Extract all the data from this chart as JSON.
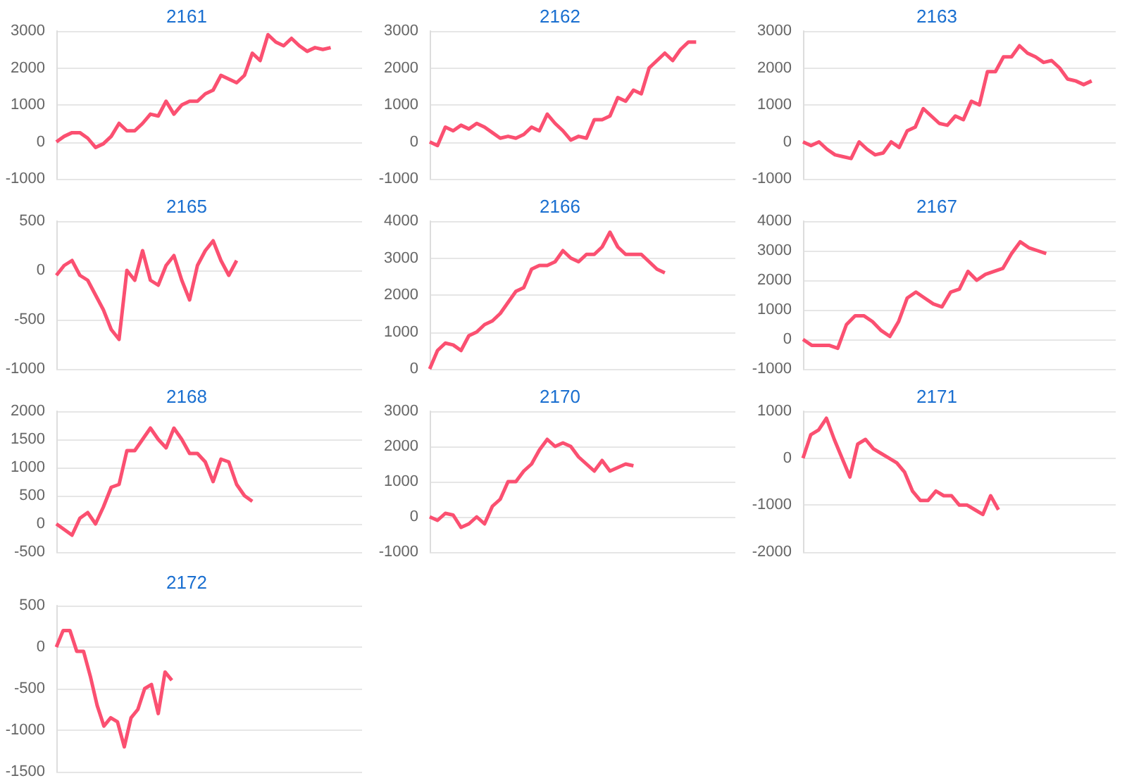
{
  "chart_data": [
    {
      "type": "line",
      "title": "2161",
      "color": "#fb5071",
      "grid": "y",
      "ylim": [
        -1000,
        3000
      ],
      "yticks": [
        -1000,
        0,
        1000,
        2000,
        3000
      ],
      "categories": [
        null,
        null,
        null,
        null,
        null,
        null,
        null,
        null,
        null,
        null,
        null,
        null,
        null,
        null,
        null,
        null,
        null,
        null,
        null,
        null,
        null,
        null,
        null,
        null,
        null,
        null,
        null,
        null,
        null,
        null,
        null,
        null,
        null,
        null,
        null,
        null,
        null,
        null,
        null,
        null
      ],
      "values": [
        0,
        150,
        250,
        250,
        100,
        -150,
        -50,
        150,
        500,
        300,
        300,
        500,
        750,
        700,
        1100,
        750,
        1000,
        1100,
        1100,
        1300,
        1400,
        1800,
        1700,
        1600,
        1800,
        2400,
        2200,
        2900,
        2700,
        2600,
        2800,
        2600,
        2450,
        2550,
        2500,
        2550,
        null,
        null,
        null,
        null
      ]
    },
    {
      "type": "line",
      "title": "2162",
      "color": "#fb5071",
      "grid": "y",
      "ylim": [
        -1000,
        3000
      ],
      "yticks": [
        -1000,
        0,
        1000,
        2000,
        3000
      ],
      "categories": [
        null,
        null,
        null,
        null,
        null,
        null,
        null,
        null,
        null,
        null,
        null,
        null,
        null,
        null,
        null,
        null,
        null,
        null,
        null,
        null,
        null,
        null,
        null,
        null,
        null,
        null,
        null,
        null,
        null,
        null,
        null,
        null,
        null,
        null,
        null,
        null,
        null,
        null,
        null,
        null
      ],
      "values": [
        0,
        -100,
        400,
        300,
        450,
        350,
        500,
        400,
        250,
        100,
        150,
        100,
        200,
        400,
        300,
        750,
        500,
        300,
        50,
        150,
        100,
        600,
        600,
        700,
        1200,
        1100,
        1400,
        1300,
        2000,
        2200,
        2400,
        2200,
        2500,
        2700,
        2700,
        null,
        null,
        null,
        null,
        null
      ]
    },
    {
      "type": "line",
      "title": "2163",
      "color": "#fb5071",
      "grid": "y",
      "ylim": [
        -1000,
        3000
      ],
      "yticks": [
        -1000,
        0,
        1000,
        2000,
        3000
      ],
      "categories": [
        null,
        null,
        null,
        null,
        null,
        null,
        null,
        null,
        null,
        null,
        null,
        null,
        null,
        null,
        null,
        null,
        null,
        null,
        null,
        null,
        null,
        null,
        null,
        null,
        null,
        null,
        null,
        null,
        null,
        null,
        null,
        null,
        null,
        null,
        null,
        null,
        null,
        null,
        null,
        null
      ],
      "values": [
        0,
        -100,
        0,
        -200,
        -350,
        -400,
        -450,
        0,
        -200,
        -350,
        -300,
        0,
        -150,
        300,
        400,
        900,
        700,
        500,
        450,
        700,
        600,
        1100,
        1000,
        1900,
        1900,
        2300,
        2300,
        2600,
        2400,
        2300,
        2150,
        2200,
        2000,
        1700,
        1650,
        1550,
        1650,
        null,
        null,
        null
      ]
    },
    {
      "type": "line",
      "title": "2165",
      "color": "#fb5071",
      "grid": "y",
      "ylim": [
        -1000,
        500
      ],
      "yticks": [
        -1000,
        -500,
        0,
        500
      ],
      "categories": [
        null,
        null,
        null,
        null,
        null,
        null,
        null,
        null,
        null,
        null,
        null,
        null,
        null,
        null,
        null,
        null,
        null,
        null,
        null,
        null,
        null,
        null,
        null,
        null,
        null,
        null,
        null,
        null,
        null,
        null,
        null,
        null,
        null,
        null,
        null,
        null,
        null,
        null,
        null,
        null
      ],
      "values": [
        -50,
        50,
        100,
        -50,
        -100,
        -250,
        -400,
        -600,
        -700,
        0,
        -100,
        200,
        -100,
        -150,
        50,
        150,
        -100,
        -300,
        50,
        200,
        300,
        100,
        -50,
        100,
        null,
        null,
        null,
        null,
        null,
        null,
        null,
        null,
        null,
        null,
        null,
        null,
        null,
        null,
        null,
        null
      ]
    },
    {
      "type": "line",
      "title": "2166",
      "color": "#fb5071",
      "grid": "y",
      "ylim": [
        0,
        4000
      ],
      "yticks": [
        0,
        1000,
        2000,
        3000,
        4000
      ],
      "categories": [
        null,
        null,
        null,
        null,
        null,
        null,
        null,
        null,
        null,
        null,
        null,
        null,
        null,
        null,
        null,
        null,
        null,
        null,
        null,
        null,
        null,
        null,
        null,
        null,
        null,
        null,
        null,
        null,
        null,
        null,
        null,
        null,
        null,
        null,
        null,
        null,
        null,
        null,
        null,
        null
      ],
      "values": [
        0,
        500,
        700,
        650,
        500,
        900,
        1000,
        1200,
        1300,
        1500,
        1800,
        2100,
        2200,
        2700,
        2800,
        2800,
        2900,
        3200,
        3000,
        2900,
        3100,
        3100,
        3300,
        3700,
        3300,
        3100,
        3100,
        3100,
        2900,
        2700,
        2600,
        null,
        null,
        null,
        null,
        null,
        null,
        null,
        null,
        null
      ]
    },
    {
      "type": "line",
      "title": "2167",
      "color": "#fb5071",
      "grid": "y",
      "ylim": [
        -1000,
        4000
      ],
      "yticks": [
        -1000,
        0,
        1000,
        2000,
        3000,
        4000
      ],
      "categories": [
        null,
        null,
        null,
        null,
        null,
        null,
        null,
        null,
        null,
        null,
        null,
        null,
        null,
        null,
        null,
        null,
        null,
        null,
        null,
        null,
        null,
        null,
        null,
        null,
        null,
        null,
        null,
        null,
        null,
        null,
        null,
        null,
        null,
        null,
        null,
        null,
        null
      ],
      "values": [
        0,
        -200,
        -200,
        -200,
        -300,
        500,
        800,
        800,
        600,
        300,
        100,
        600,
        1400,
        1600,
        1400,
        1200,
        1100,
        1600,
        1700,
        2300,
        2000,
        2200,
        2300,
        2400,
        2900,
        3300,
        3100,
        3000,
        2900,
        null,
        null,
        null,
        null,
        null,
        null,
        null,
        null
      ]
    },
    {
      "type": "line",
      "title": "2168",
      "color": "#fb5071",
      "grid": "y",
      "ylim": [
        -500,
        2000
      ],
      "yticks": [
        -500,
        0,
        500,
        1000,
        1500,
        2000
      ],
      "categories": [
        null,
        null,
        null,
        null,
        null,
        null,
        null,
        null,
        null,
        null,
        null,
        null,
        null,
        null,
        null,
        null,
        null,
        null,
        null,
        null,
        null,
        null,
        null,
        null,
        null,
        null,
        null,
        null,
        null,
        null,
        null,
        null,
        null,
        null,
        null,
        null,
        null,
        null,
        null,
        null
      ],
      "values": [
        0,
        -100,
        -200,
        100,
        200,
        0,
        300,
        650,
        700,
        1300,
        1300,
        1500,
        1700,
        1500,
        1350,
        1700,
        1500,
        1250,
        1250,
        1100,
        750,
        1150,
        1100,
        700,
        500,
        400,
        null,
        null,
        null,
        null,
        null,
        null,
        null,
        null,
        null,
        null,
        null,
        null,
        null,
        null
      ]
    },
    {
      "type": "line",
      "title": "2170",
      "color": "#fb5071",
      "grid": "y",
      "ylim": [
        -1000,
        3000
      ],
      "yticks": [
        -1000,
        0,
        1000,
        2000,
        3000
      ],
      "categories": [
        null,
        null,
        null,
        null,
        null,
        null,
        null,
        null,
        null,
        null,
        null,
        null,
        null,
        null,
        null,
        null,
        null,
        null,
        null,
        null,
        null,
        null,
        null,
        null,
        null,
        null,
        null,
        null,
        null,
        null,
        null,
        null,
        null,
        null,
        null,
        null,
        null,
        null,
        null,
        null
      ],
      "values": [
        0,
        -100,
        100,
        50,
        -300,
        -200,
        0,
        -200,
        300,
        500,
        1000,
        1000,
        1300,
        1500,
        1900,
        2200,
        2000,
        2100,
        2000,
        1700,
        1500,
        1300,
        1600,
        1300,
        1400,
        1500,
        1450,
        null,
        null,
        null,
        null,
        null,
        null,
        null,
        null,
        null,
        null,
        null,
        null,
        null
      ]
    },
    {
      "type": "line",
      "title": "2171",
      "color": "#fb5071",
      "grid": "y",
      "ylim": [
        -2000,
        1000
      ],
      "yticks": [
        -2000,
        -1000,
        0,
        1000
      ],
      "categories": [
        null,
        null,
        null,
        null,
        null,
        null,
        null,
        null,
        null,
        null,
        null,
        null,
        null,
        null,
        null,
        null,
        null,
        null,
        null,
        null,
        null,
        null,
        null,
        null,
        null,
        null,
        null,
        null,
        null,
        null,
        null,
        null,
        null,
        null,
        null,
        null,
        null,
        null,
        null,
        null,
        null
      ],
      "values": [
        0,
        500,
        600,
        850,
        400,
        0,
        -400,
        300,
        400,
        200,
        100,
        0,
        -100,
        -300,
        -700,
        -900,
        -900,
        -700,
        -800,
        -800,
        -1000,
        -1000,
        -1100,
        -1200,
        -800,
        -1100,
        null,
        null,
        null,
        null,
        null,
        null,
        null,
        null,
        null,
        null,
        null,
        null,
        null,
        null,
        null
      ]
    },
    {
      "type": "line",
      "title": "2172",
      "color": "#fb5071",
      "grid": "y",
      "ylim": [
        -1500,
        500
      ],
      "yticks": [
        -1500,
        -1000,
        -500,
        0,
        500
      ],
      "categories": [
        null,
        null,
        null,
        null,
        null,
        null,
        null,
        null,
        null,
        null,
        null,
        null,
        null,
        null,
        null,
        null,
        null,
        null,
        null,
        null,
        null,
        null,
        null,
        null,
        null,
        null,
        null,
        null,
        null,
        null,
        null,
        null,
        null,
        null,
        null,
        null,
        null,
        null,
        null,
        null,
        null,
        null,
        null,
        null,
        null,
        null
      ],
      "values": [
        0,
        200,
        200,
        -50,
        -50,
        -350,
        -700,
        -950,
        -850,
        -900,
        -1200,
        -850,
        -750,
        -500,
        -450,
        -800,
        -300,
        -400,
        null,
        null,
        null,
        null,
        null,
        null,
        null,
        null,
        null,
        null,
        null,
        null,
        null,
        null,
        null,
        null,
        null,
        null,
        null,
        null,
        null,
        null,
        null,
        null,
        null,
        null,
        null,
        null
      ]
    }
  ]
}
